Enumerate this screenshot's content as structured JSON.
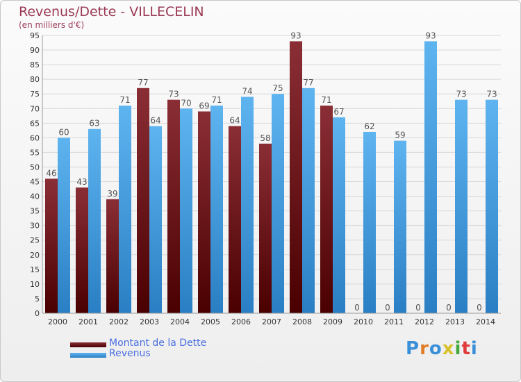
{
  "title": "Revenus/Dette - VILLECELIN",
  "subtitle": "(en milliers d'€)",
  "brand": "Proxiti",
  "colors": {
    "dette_top": "#8a2e35",
    "dette_bottom": "#4a0000",
    "revenus_top": "#5eb4ef",
    "revenus_bottom": "#2a7fc4",
    "grid": "#d8d8d8",
    "axis_text": "#333333",
    "label_text": "#555555",
    "title": "#9b3a55",
    "legend_text": "#4a6fe0"
  },
  "legend": [
    {
      "label": "Montant de la Dette",
      "swatch": "dette"
    },
    {
      "label": "Revenus",
      "swatch": "revenus"
    }
  ],
  "chart_data": {
    "type": "bar",
    "title": "Revenus/Dette - VILLECELIN",
    "subtitle": "(en milliers d'€)",
    "categories": [
      "2000",
      "2001",
      "2002",
      "2003",
      "2004",
      "2005",
      "2006",
      "2007",
      "2008",
      "2009",
      "2010",
      "2011",
      "2012",
      "2013",
      "2014"
    ],
    "series": [
      {
        "name": "Montant de la Dette",
        "values": [
          46,
          43,
          39,
          77,
          73,
          69,
          64,
          58,
          93,
          71,
          0,
          0,
          0,
          0,
          0
        ]
      },
      {
        "name": "Revenus",
        "values": [
          60,
          63,
          71,
          64,
          70,
          71,
          74,
          75,
          77,
          67,
          62,
          59,
          93,
          73,
          73
        ]
      }
    ],
    "ylim": [
      0,
      95
    ],
    "ytick_step": 5,
    "grid": true,
    "legend_position": "bottom-left"
  }
}
